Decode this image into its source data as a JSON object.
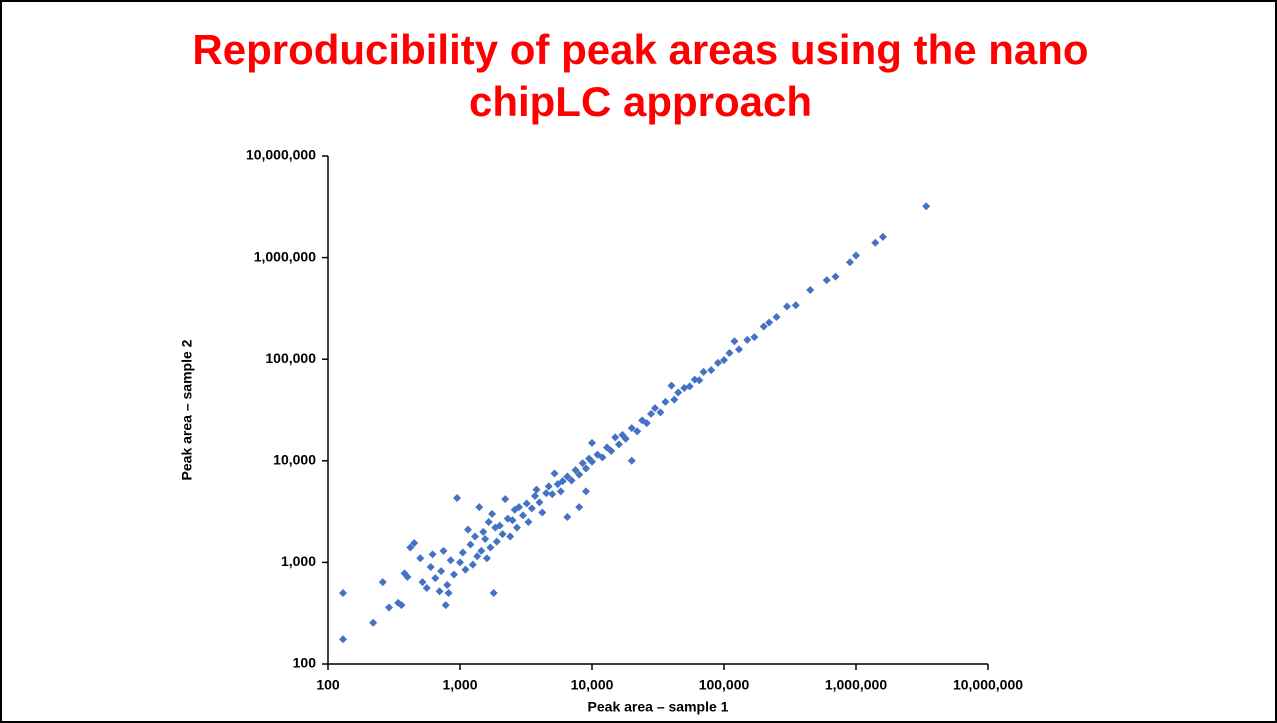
{
  "chart_data": {
    "type": "scatter",
    "title": "Reproducibility of peak areas using the nano chipLC approach",
    "x_label": "Peak area – sample 1",
    "y_label": "Peak area – sample 2",
    "xscale": "log",
    "yscale": "log",
    "xlim": [
      100,
      10000000
    ],
    "ylim": [
      100,
      10000000
    ],
    "xticks": [
      {
        "value": 100,
        "label": "100"
      },
      {
        "value": 1000,
        "label": "1,000"
      },
      {
        "value": 10000,
        "label": "10,000"
      },
      {
        "value": 100000,
        "label": "100,000"
      },
      {
        "value": 1000000,
        "label": "1,000,000"
      },
      {
        "value": 10000000,
        "label": "10,000,000"
      }
    ],
    "yticks": [
      {
        "value": 100,
        "label": "100"
      },
      {
        "value": 1000,
        "label": "1,000"
      },
      {
        "value": 10000,
        "label": "10,000"
      },
      {
        "value": 100000,
        "label": "100,000"
      },
      {
        "value": 1000000,
        "label": "1,000,000"
      },
      {
        "value": 10000000,
        "label": "10,000,000"
      }
    ],
    "color": "#4472c4",
    "x": [
      130,
      130,
      220,
      260,
      290,
      340,
      360,
      380,
      400,
      420,
      450,
      500,
      520,
      560,
      600,
      620,
      650,
      700,
      720,
      750,
      780,
      800,
      820,
      850,
      900,
      950,
      1000,
      1050,
      1100,
      1150,
      1200,
      1250,
      1300,
      1350,
      1400,
      1450,
      1500,
      1550,
      1600,
      1650,
      1700,
      1750,
      1800,
      1850,
      1900,
      2000,
      2100,
      2200,
      2300,
      2400,
      2500,
      2600,
      2700,
      2800,
      3000,
      3200,
      3300,
      3500,
      3700,
      3800,
      4000,
      4200,
      4500,
      4700,
      5000,
      5200,
      5500,
      5800,
      6000,
      6500,
      6500,
      7000,
      7500,
      8000,
      8000,
      8500,
      9000,
      9000,
      9500,
      10000,
      10000,
      11000,
      12000,
      13000,
      14000,
      15000,
      16000,
      17000,
      18000,
      20000,
      20000,
      22000,
      24000,
      26000,
      28000,
      30000,
      33000,
      36000,
      40000,
      42000,
      45000,
      50000,
      55000,
      60000,
      65000,
      70000,
      80000,
      90000,
      100000,
      110000,
      120000,
      130000,
      150000,
      170000,
      200000,
      220000,
      250000,
      300000,
      350000,
      450000,
      600000,
      700000,
      900000,
      1000000,
      1400000,
      1600000,
      3400000
    ],
    "values": [
      500,
      175,
      255,
      640,
      360,
      400,
      380,
      780,
      720,
      1400,
      1550,
      1100,
      640,
      560,
      900,
      1200,
      700,
      520,
      820,
      1300,
      380,
      600,
      500,
      1050,
      760,
      4300,
      1000,
      1250,
      850,
      2100,
      1500,
      950,
      1800,
      1150,
      3500,
      1300,
      2000,
      1700,
      1100,
      2500,
      1400,
      3000,
      500,
      2200,
      1600,
      2300,
      1900,
      4200,
      2700,
      1800,
      2600,
      3300,
      2200,
      3500,
      2900,
      3800,
      2500,
      3400,
      4500,
      5200,
      3900,
      3100,
      4800,
      5600,
      4700,
      7500,
      5900,
      5000,
      6300,
      2800,
      7000,
      6400,
      8100,
      7300,
      3500,
      9500,
      8400,
      5000,
      10500,
      9800,
      15000,
      11500,
      10800,
      13500,
      12500,
      17000,
      14500,
      18000,
      16500,
      21000,
      10000,
      19500,
      25000,
      23500,
      29000,
      33000,
      30000,
      38000,
      55000,
      40000,
      47000,
      52000,
      54000,
      63000,
      62000,
      75000,
      78000,
      92000,
      98000,
      115000,
      150000,
      125000,
      155000,
      165000,
      210000,
      230000,
      260000,
      330000,
      340000,
      480000,
      600000,
      650000,
      900000,
      1050000,
      1400000,
      1600000,
      3200000
    ]
  }
}
